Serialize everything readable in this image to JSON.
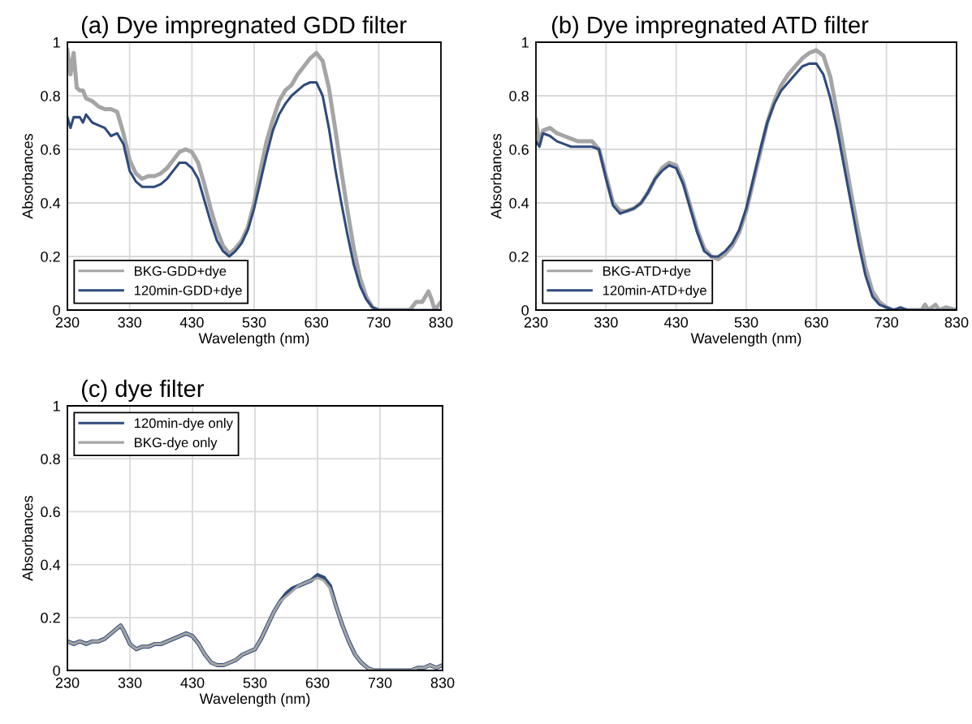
{
  "chart_data": [
    {
      "type": "line",
      "title": "(a) Dye impregnated GDD filter",
      "xlabel": "Wavelength (nm)",
      "ylabel": "Absorbances",
      "xlim": [
        230,
        830
      ],
      "xticks": [
        230,
        330,
        430,
        530,
        630,
        730,
        830
      ],
      "ylim": [
        0,
        1
      ],
      "yticks": [
        0,
        0.2,
        0.4,
        0.6,
        0.8,
        1
      ],
      "grid": true,
      "legend": "bottom left",
      "x": [
        230,
        235,
        240,
        245,
        250,
        255,
        260,
        270,
        280,
        290,
        300,
        310,
        320,
        330,
        340,
        350,
        360,
        370,
        380,
        390,
        400,
        410,
        420,
        430,
        440,
        450,
        460,
        470,
        480,
        490,
        500,
        510,
        520,
        530,
        540,
        550,
        560,
        570,
        580,
        590,
        600,
        610,
        620,
        630,
        640,
        650,
        660,
        670,
        680,
        690,
        700,
        710,
        720,
        730,
        740,
        770,
        780,
        790,
        800,
        810,
        815,
        820,
        830
      ],
      "series": [
        {
          "name": "BKG-GDD+dye",
          "color": "#a5a5a5",
          "values": [
            0.97,
            0.88,
            0.96,
            0.83,
            0.82,
            0.82,
            0.79,
            0.78,
            0.76,
            0.75,
            0.75,
            0.74,
            0.66,
            0.56,
            0.51,
            0.49,
            0.5,
            0.5,
            0.51,
            0.53,
            0.56,
            0.59,
            0.6,
            0.59,
            0.55,
            0.47,
            0.38,
            0.3,
            0.24,
            0.21,
            0.23,
            0.26,
            0.31,
            0.4,
            0.52,
            0.63,
            0.71,
            0.78,
            0.82,
            0.84,
            0.88,
            0.91,
            0.94,
            0.96,
            0.93,
            0.83,
            0.68,
            0.52,
            0.37,
            0.23,
            0.12,
            0.05,
            0.01,
            0,
            0,
            0,
            0,
            0.03,
            0.03,
            0.07,
            0.04,
            0,
            0.03
          ]
        },
        {
          "name": "120min-GDD+dye",
          "color": "#2f4b7c",
          "values": [
            0.72,
            0.68,
            0.72,
            0.72,
            0.72,
            0.7,
            0.73,
            0.7,
            0.69,
            0.68,
            0.65,
            0.66,
            0.62,
            0.52,
            0.48,
            0.46,
            0.46,
            0.46,
            0.47,
            0.49,
            0.52,
            0.55,
            0.55,
            0.53,
            0.49,
            0.41,
            0.33,
            0.26,
            0.22,
            0.2,
            0.22,
            0.25,
            0.3,
            0.38,
            0.48,
            0.58,
            0.67,
            0.73,
            0.77,
            0.8,
            0.82,
            0.84,
            0.85,
            0.85,
            0.8,
            0.68,
            0.53,
            0.4,
            0.28,
            0.17,
            0.09,
            0.04,
            0.01,
            0,
            0,
            0,
            0,
            0,
            0,
            0,
            0,
            0,
            0
          ]
        }
      ]
    },
    {
      "type": "line",
      "title": "(b) Dye impregnated ATD filter",
      "xlabel": "Wavelength (nm)",
      "ylabel": "Absorbances",
      "xlim": [
        230,
        830
      ],
      "xticks": [
        230,
        330,
        430,
        530,
        630,
        730,
        830
      ],
      "ylim": [
        0,
        1
      ],
      "yticks": [
        0,
        0.2,
        0.4,
        0.6,
        0.8,
        1
      ],
      "grid": true,
      "legend": "bottom left",
      "x": [
        230,
        235,
        240,
        250,
        260,
        270,
        280,
        290,
        300,
        310,
        320,
        330,
        340,
        350,
        360,
        370,
        380,
        390,
        400,
        410,
        420,
        430,
        440,
        450,
        460,
        470,
        480,
        490,
        500,
        510,
        520,
        530,
        540,
        550,
        560,
        570,
        580,
        590,
        600,
        610,
        620,
        630,
        640,
        650,
        660,
        670,
        680,
        690,
        700,
        710,
        720,
        730,
        740,
        750,
        760,
        780,
        785,
        790,
        800,
        805,
        815,
        830
      ],
      "series": [
        {
          "name": "BKG-ATD+dye",
          "color": "#a5a5a5",
          "values": [
            0.71,
            0.62,
            0.67,
            0.68,
            0.66,
            0.65,
            0.64,
            0.63,
            0.63,
            0.63,
            0.6,
            0.5,
            0.4,
            0.37,
            0.37,
            0.38,
            0.4,
            0.44,
            0.49,
            0.53,
            0.55,
            0.54,
            0.48,
            0.39,
            0.3,
            0.23,
            0.2,
            0.19,
            0.21,
            0.24,
            0.29,
            0.37,
            0.48,
            0.59,
            0.7,
            0.78,
            0.84,
            0.88,
            0.91,
            0.94,
            0.96,
            0.97,
            0.95,
            0.87,
            0.73,
            0.58,
            0.43,
            0.29,
            0.16,
            0.07,
            0.03,
            0.01,
            0,
            0,
            0,
            0,
            0.02,
            0,
            0.02,
            0,
            0.01,
            0
          ]
        },
        {
          "name": "120min-ATD+dye",
          "color": "#2f4b7c",
          "values": [
            0.63,
            0.61,
            0.66,
            0.65,
            0.63,
            0.62,
            0.61,
            0.61,
            0.61,
            0.61,
            0.6,
            0.49,
            0.39,
            0.36,
            0.37,
            0.38,
            0.4,
            0.44,
            0.49,
            0.52,
            0.54,
            0.53,
            0.47,
            0.38,
            0.29,
            0.22,
            0.2,
            0.2,
            0.22,
            0.25,
            0.3,
            0.38,
            0.49,
            0.6,
            0.7,
            0.77,
            0.82,
            0.85,
            0.88,
            0.91,
            0.92,
            0.92,
            0.88,
            0.79,
            0.67,
            0.53,
            0.39,
            0.25,
            0.13,
            0.05,
            0.02,
            0.01,
            0,
            0.01,
            0,
            0,
            0,
            0,
            0,
            0,
            0,
            0
          ]
        }
      ]
    },
    {
      "type": "line",
      "title": "(c) dye filter",
      "xlabel": "Wavelength (nm)",
      "ylabel": "Absorbances",
      "xlim": [
        230,
        830
      ],
      "xticks": [
        230,
        330,
        430,
        530,
        630,
        730,
        830
      ],
      "ylim": [
        0,
        1
      ],
      "yticks": [
        0,
        0.2,
        0.4,
        0.6,
        0.8,
        1
      ],
      "grid": true,
      "legend": "top left",
      "x": [
        230,
        240,
        250,
        260,
        270,
        280,
        290,
        300,
        310,
        315,
        320,
        330,
        340,
        350,
        360,
        370,
        380,
        390,
        400,
        410,
        420,
        430,
        440,
        450,
        460,
        470,
        480,
        490,
        500,
        510,
        520,
        530,
        540,
        550,
        560,
        570,
        580,
        590,
        600,
        610,
        620,
        630,
        640,
        650,
        660,
        670,
        680,
        690,
        700,
        710,
        720,
        780,
        790,
        800,
        810,
        820,
        830
      ],
      "series": [
        {
          "name": "120min-dye only",
          "color": "#2f4b7c",
          "values": [
            0.11,
            0.1,
            0.11,
            0.1,
            0.11,
            0.11,
            0.12,
            0.14,
            0.16,
            0.17,
            0.15,
            0.1,
            0.08,
            0.09,
            0.09,
            0.1,
            0.1,
            0.11,
            0.12,
            0.13,
            0.14,
            0.13,
            0.1,
            0.06,
            0.03,
            0.02,
            0.02,
            0.03,
            0.04,
            0.06,
            0.07,
            0.08,
            0.12,
            0.17,
            0.22,
            0.26,
            0.29,
            0.31,
            0.32,
            0.33,
            0.34,
            0.36,
            0.35,
            0.32,
            0.24,
            0.17,
            0.11,
            0.06,
            0.03,
            0.01,
            0,
            0,
            0.01,
            0.01,
            0.02,
            0.01,
            0.02
          ]
        },
        {
          "name": "BKG-dye only",
          "color": "#a5a5a5",
          "values": [
            0.11,
            0.1,
            0.11,
            0.1,
            0.11,
            0.11,
            0.12,
            0.14,
            0.16,
            0.17,
            0.15,
            0.1,
            0.08,
            0.09,
            0.09,
            0.1,
            0.1,
            0.11,
            0.12,
            0.13,
            0.14,
            0.13,
            0.1,
            0.06,
            0.03,
            0.02,
            0.02,
            0.03,
            0.04,
            0.06,
            0.07,
            0.08,
            0.12,
            0.17,
            0.22,
            0.26,
            0.28,
            0.3,
            0.32,
            0.33,
            0.34,
            0.35,
            0.34,
            0.31,
            0.24,
            0.17,
            0.11,
            0.06,
            0.03,
            0.01,
            0,
            0,
            0.01,
            0.01,
            0.02,
            0.01,
            0.02
          ]
        }
      ]
    }
  ]
}
